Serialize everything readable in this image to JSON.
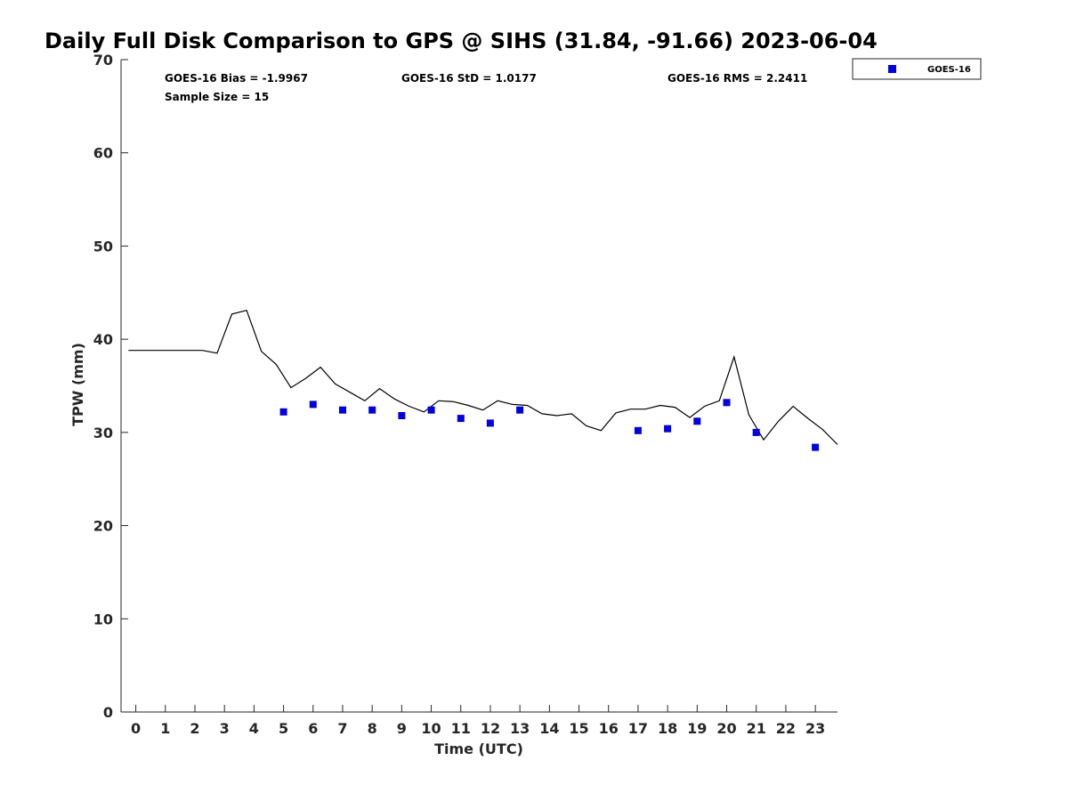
{
  "chart_data": {
    "type": "line+scatter",
    "title": "Daily Full Disk Comparison to GPS @ SIHS (31.84, -91.66) 2023-06-04",
    "xlabel": "Time (UTC)",
    "ylabel": "TPW (mm)",
    "xlim": [
      -0.5,
      23.75
    ],
    "ylim": [
      0,
      70
    ],
    "xticks": [
      "0",
      "1",
      "2",
      "3",
      "4",
      "5",
      "6",
      "7",
      "8",
      "9",
      "10",
      "11",
      "12",
      "13",
      "14",
      "15",
      "16",
      "17",
      "18",
      "19",
      "20",
      "21",
      "22",
      "23"
    ],
    "yticks": [
      "0",
      "10",
      "20",
      "30",
      "40",
      "50",
      "60",
      "70"
    ],
    "grid": false,
    "stats": {
      "bias": "GOES-16 Bias = -1.9967",
      "std": "GOES-16 StD = 1.0177",
      "rms": "GOES-16 RMS = 2.2411",
      "sample": "Sample Size = 15"
    },
    "legend": {
      "location": "outside-top-right",
      "entries": [
        "GOES-16"
      ]
    },
    "series": [
      {
        "kind": "line",
        "color": "#000000",
        "points": [
          [
            -0.25,
            38.8
          ],
          [
            2.25,
            38.8
          ],
          [
            2.75,
            38.5
          ],
          [
            3.25,
            42.7
          ],
          [
            3.75,
            43.1
          ],
          [
            4.25,
            38.7
          ],
          [
            4.75,
            37.3
          ],
          [
            5.25,
            34.8
          ],
          [
            5.75,
            35.8
          ],
          [
            6.25,
            37.0
          ],
          [
            6.75,
            35.2
          ],
          [
            7.25,
            34.3
          ],
          [
            7.75,
            33.4
          ],
          [
            8.25,
            34.7
          ],
          [
            8.75,
            33.6
          ],
          [
            9.25,
            32.8
          ],
          [
            9.75,
            32.2
          ],
          [
            10.25,
            33.4
          ],
          [
            10.75,
            33.3
          ],
          [
            11.25,
            32.9
          ],
          [
            11.75,
            32.4
          ],
          [
            12.25,
            33.4
          ],
          [
            12.75,
            33.0
          ],
          [
            13.25,
            32.9
          ],
          [
            13.75,
            32.0
          ],
          [
            14.25,
            31.8
          ],
          [
            14.75,
            32.0
          ],
          [
            15.25,
            30.7
          ],
          [
            15.75,
            30.2
          ],
          [
            16.25,
            32.1
          ],
          [
            16.75,
            32.5
          ],
          [
            17.25,
            32.5
          ],
          [
            17.75,
            32.9
          ],
          [
            18.25,
            32.7
          ],
          [
            18.75,
            31.6
          ],
          [
            19.25,
            32.8
          ],
          [
            19.75,
            33.4
          ],
          [
            20.25,
            38.1
          ],
          [
            20.75,
            31.9
          ],
          [
            21.25,
            29.2
          ],
          [
            21.75,
            31.2
          ],
          [
            22.25,
            32.8
          ],
          [
            22.75,
            31.5
          ],
          [
            23.25,
            30.3
          ],
          [
            23.75,
            28.7
          ]
        ]
      },
      {
        "kind": "scatter",
        "name": "GOES-16",
        "color": "#0000dd",
        "points": [
          [
            5,
            32.2
          ],
          [
            6,
            33.0
          ],
          [
            7,
            32.4
          ],
          [
            8,
            32.4
          ],
          [
            9,
            31.8
          ],
          [
            10,
            32.4
          ],
          [
            11,
            31.5
          ],
          [
            12,
            31.0
          ],
          [
            13,
            32.4
          ],
          [
            17,
            30.2
          ],
          [
            18,
            30.4
          ],
          [
            19,
            31.2
          ],
          [
            20,
            33.2
          ],
          [
            21,
            30.0
          ],
          [
            23,
            28.4
          ]
        ]
      }
    ]
  }
}
